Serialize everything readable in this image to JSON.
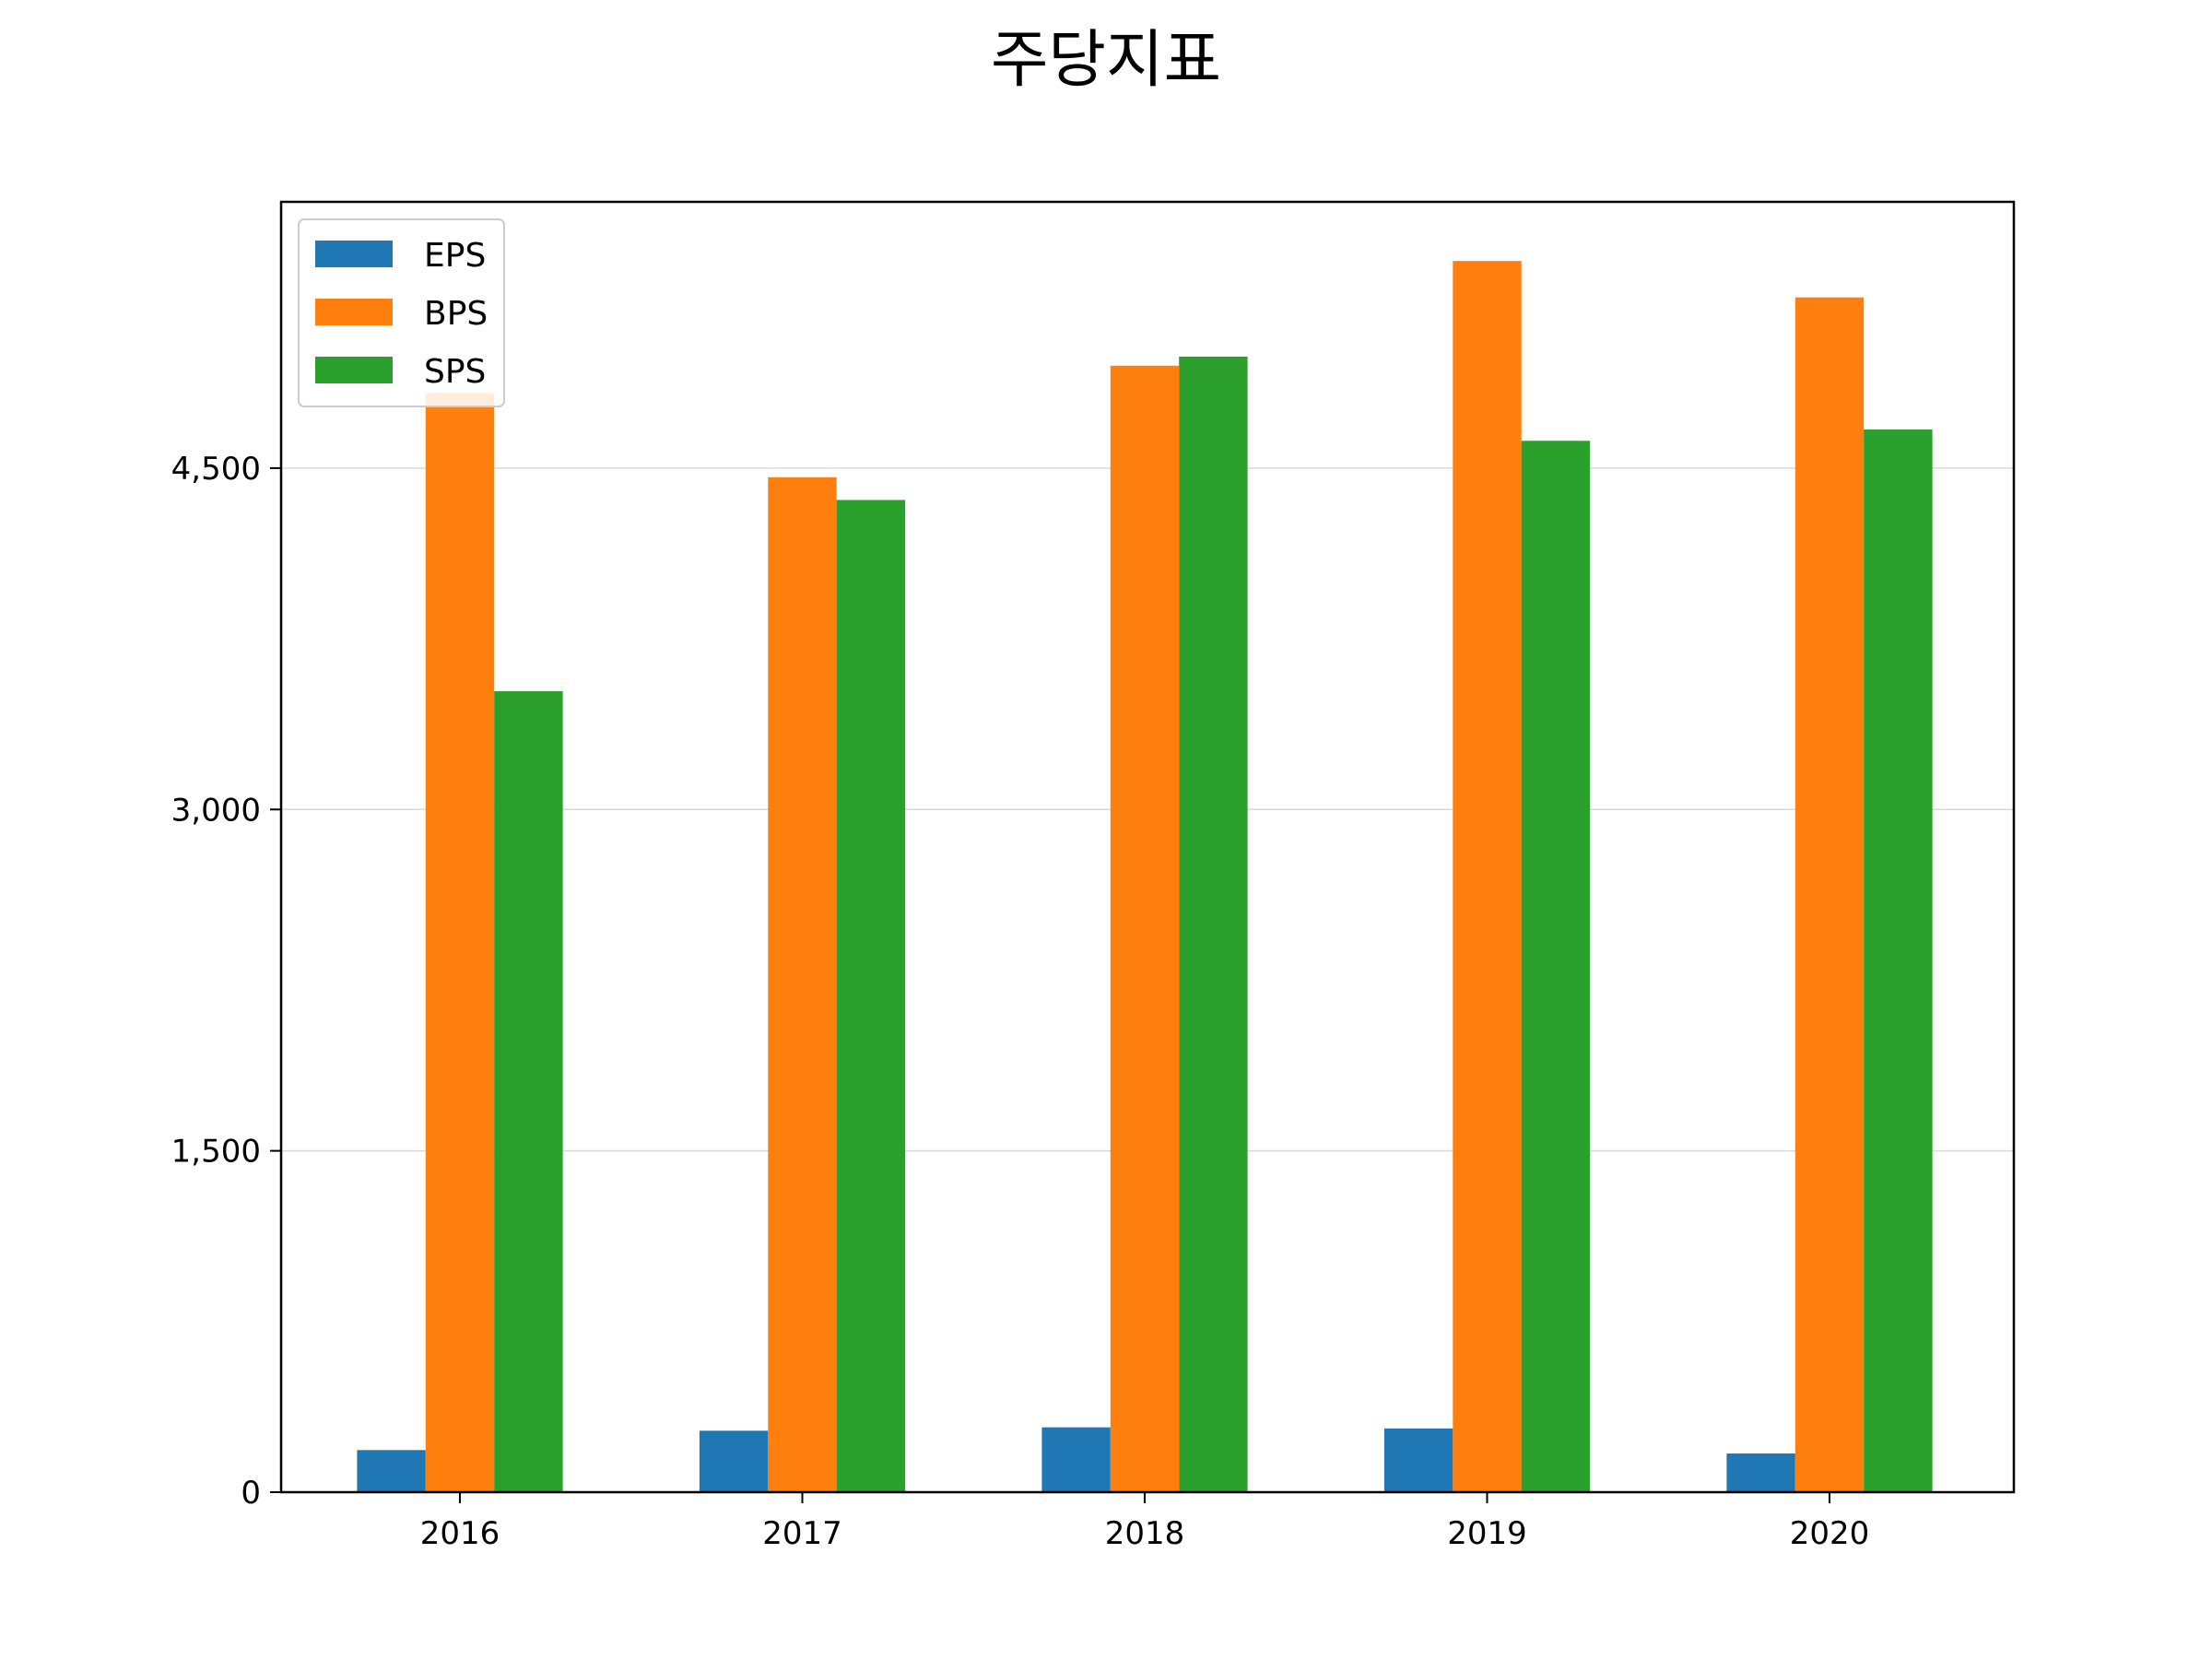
{
  "chart_data": {
    "type": "bar",
    "title": "주당지표",
    "xlabel": "",
    "ylabel": "",
    "categories": [
      "2016",
      "2017",
      "2018",
      "2019",
      "2020"
    ],
    "series": [
      {
        "name": "EPS",
        "color": "#1f77b4",
        "values": [
          185,
          270,
          285,
          280,
          170
        ]
      },
      {
        "name": "BPS",
        "color": "#ff7f0e",
        "values": [
          4830,
          4460,
          4950,
          5410,
          5250
        ]
      },
      {
        "name": "SPS",
        "color": "#2ca02c",
        "values": [
          3520,
          4360,
          4990,
          4620,
          4670
        ]
      }
    ],
    "ylim": [
      0,
      5670
    ],
    "yticks": [
      0,
      1500,
      3000,
      4500
    ],
    "ytick_labels": [
      "0",
      "1,500",
      "3,000",
      "4,500"
    ],
    "grid": "y",
    "legend_position": "upper left"
  }
}
